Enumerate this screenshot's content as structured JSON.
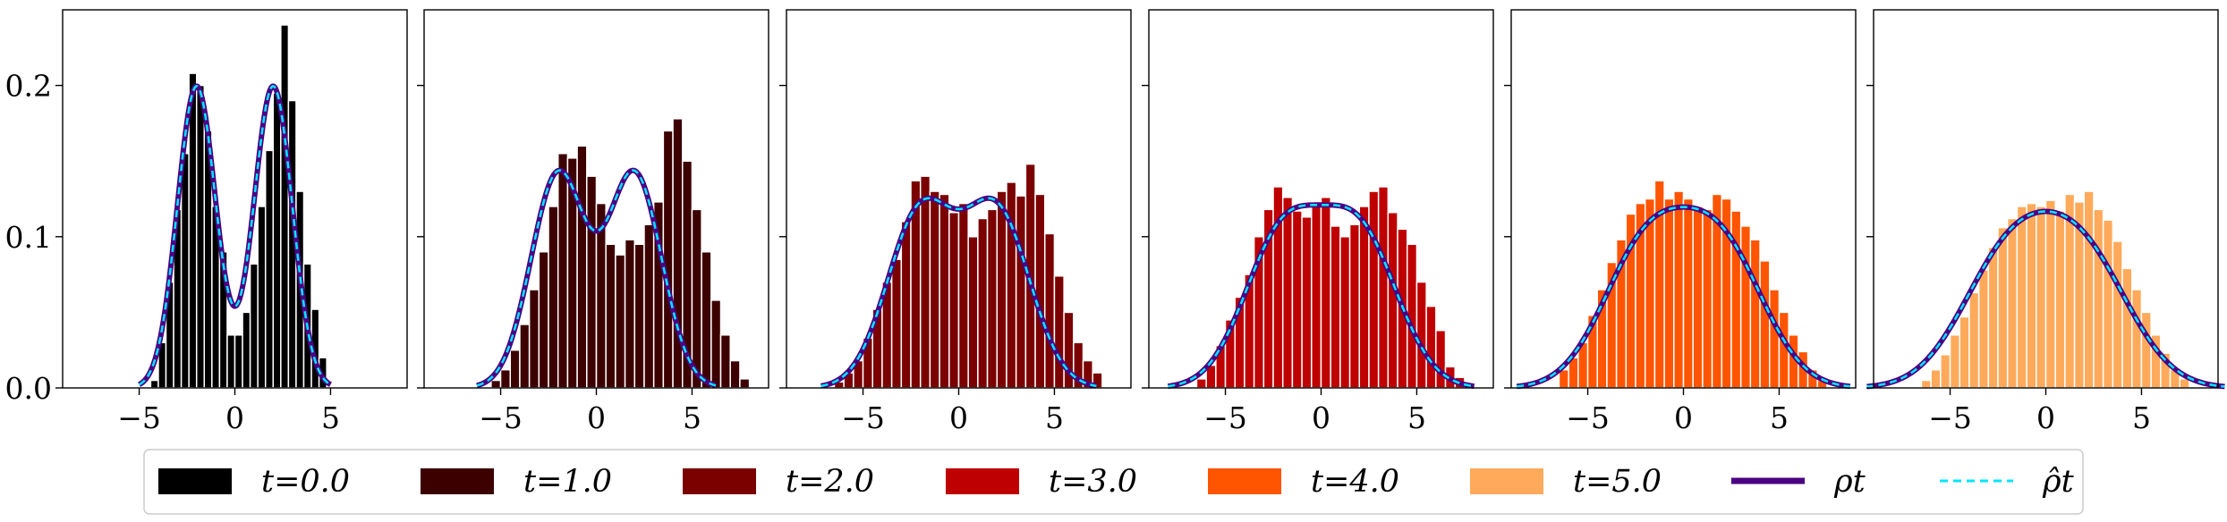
{
  "chart_data": {
    "type": "histogram-with-density",
    "ylim": [
      0,
      0.25
    ],
    "yticks": [
      0.0,
      0.1,
      0.2
    ],
    "ytick_labels": [
      "0.0",
      "0.1",
      "0.2"
    ],
    "xticks": [
      -5,
      0,
      5
    ],
    "xtick_labels": [
      "−5",
      "0",
      "5"
    ],
    "panels": [
      {
        "t_label": "t=0.0",
        "color": "#000000",
        "xlim": [
          -9,
          9
        ],
        "mixture": {
          "means": [
            -2,
            2
          ],
          "sigma": 1.0
        },
        "bins": {
          "start": -4.4,
          "width": 0.4,
          "values": [
            0.005,
            0.03,
            0.07,
            0.118,
            0.155,
            0.208,
            0.2,
            0.17,
            0.12,
            0.09,
            0.035,
            0.035,
            0.05,
            0.082,
            0.12,
            0.157,
            0.195,
            0.24,
            0.19,
            0.13,
            0.082,
            0.052,
            0.02
          ]
        }
      },
      {
        "t_label": "t=1.0",
        "color": "#3d0000",
        "xlim": [
          -9,
          9
        ],
        "mixture": {
          "means": [
            -2,
            2
          ],
          "sigma": 1.4142
        },
        "bins": {
          "start": -5.5,
          "width": 0.5,
          "values": [
            0.005,
            0.012,
            0.025,
            0.042,
            0.065,
            0.09,
            0.12,
            0.155,
            0.152,
            0.16,
            0.14,
            0.122,
            0.095,
            0.088,
            0.098,
            0.095,
            0.108,
            0.123,
            0.17,
            0.178,
            0.15,
            0.118,
            0.09,
            0.058,
            0.035,
            0.018,
            0.006
          ]
        }
      },
      {
        "t_label": "t=2.0",
        "color": "#7b0000",
        "xlim": [
          -9,
          9
        ],
        "mixture": {
          "means": [
            -2,
            2
          ],
          "sigma": 1.7321
        },
        "bins": {
          "start": -6.5,
          "width": 0.5,
          "values": [
            0.004,
            0.01,
            0.018,
            0.033,
            0.052,
            0.07,
            0.085,
            0.11,
            0.137,
            0.14,
            0.13,
            0.128,
            0.116,
            0.122,
            0.1,
            0.112,
            0.118,
            0.13,
            0.136,
            0.127,
            0.148,
            0.128,
            0.102,
            0.074,
            0.05,
            0.03,
            0.018,
            0.01
          ]
        }
      },
      {
        "t_label": "t=3.0",
        "color": "#be0000",
        "xlim": [
          -9,
          9
        ],
        "mixture": {
          "means": [
            -2,
            2
          ],
          "sigma": 2.0
        },
        "bins": {
          "start": -6.5,
          "width": 0.5,
          "values": [
            0.006,
            0.015,
            0.028,
            0.045,
            0.06,
            0.075,
            0.1,
            0.118,
            0.133,
            0.126,
            0.117,
            0.113,
            0.12,
            0.126,
            0.107,
            0.1,
            0.108,
            0.12,
            0.13,
            0.133,
            0.116,
            0.105,
            0.095,
            0.07,
            0.054,
            0.038,
            0.014,
            0.007
          ]
        }
      },
      {
        "t_label": "t=4.0",
        "color": "#ff5500",
        "xlim": [
          -9,
          9
        ],
        "mixture": {
          "means": [
            -2,
            2
          ],
          "sigma": 2.2361
        },
        "bins": {
          "start": -6.5,
          "width": 0.5,
          "values": [
            0.012,
            0.02,
            0.03,
            0.048,
            0.065,
            0.083,
            0.098,
            0.115,
            0.122,
            0.125,
            0.137,
            0.125,
            0.13,
            0.125,
            0.12,
            0.118,
            0.128,
            0.125,
            0.117,
            0.107,
            0.098,
            0.084,
            0.065,
            0.05,
            0.035,
            0.024,
            0.012,
            0.005
          ]
        }
      },
      {
        "t_label": "t=5.0",
        "color": "#ffaa5b",
        "xlim": [
          -9,
          9
        ],
        "mixture": {
          "means": [
            -2,
            2
          ],
          "sigma": 2.4495
        },
        "bins": {
          "start": -6.5,
          "width": 0.5,
          "values": [
            0.005,
            0.012,
            0.022,
            0.035,
            0.047,
            0.063,
            0.078,
            0.093,
            0.106,
            0.112,
            0.12,
            0.122,
            0.12,
            0.124,
            0.117,
            0.128,
            0.123,
            0.13,
            0.118,
            0.111,
            0.097,
            0.079,
            0.065,
            0.05,
            0.035,
            0.023,
            0.012,
            0.006
          ]
        }
      }
    ],
    "density_style": {
      "rho_color": "#4b0082",
      "rho_hat_color": "#00e5ff"
    },
    "legend": {
      "placement": "bottom-center",
      "items": [
        {
          "label": "t=0.0",
          "kind": "patch",
          "color": "#000000"
        },
        {
          "label": "t=1.0",
          "kind": "patch",
          "color": "#3d0000"
        },
        {
          "label": "t=2.0",
          "kind": "patch",
          "color": "#7b0000"
        },
        {
          "label": "t=3.0",
          "kind": "patch",
          "color": "#be0000"
        },
        {
          "label": "t=4.0",
          "kind": "patch",
          "color": "#ff5500"
        },
        {
          "label": "t=5.0",
          "kind": "patch",
          "color": "#ffaa5b"
        },
        {
          "label": "ρt",
          "kind": "solid-line",
          "color": "#4b0082"
        },
        {
          "label": "ρ̂t",
          "kind": "dashed-line",
          "color": "#00e5ff"
        }
      ]
    }
  }
}
